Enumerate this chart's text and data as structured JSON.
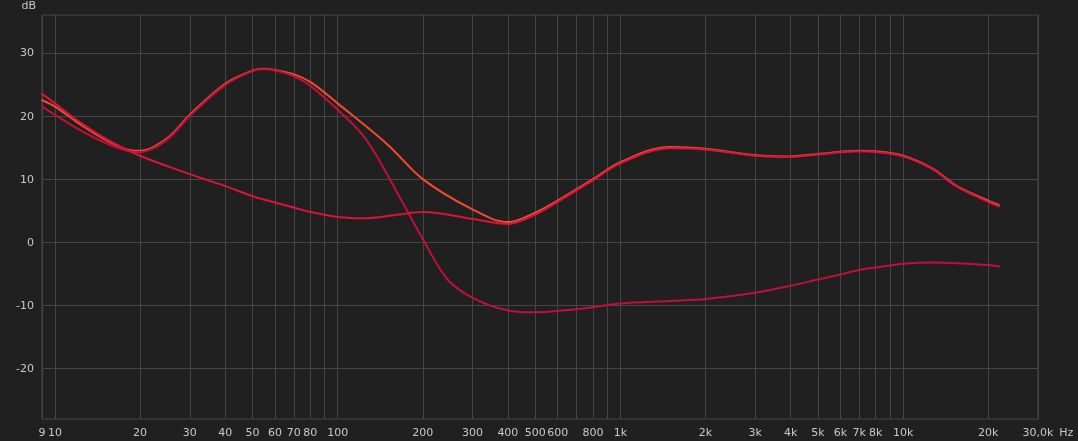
{
  "chart_data": {
    "type": "line",
    "xlabel": "Hz",
    "ylabel": "dB",
    "log": "x",
    "grid": true,
    "marker": "none",
    "line_style": "solid",
    "xlim": [
      9,
      30000
    ],
    "ylim": [
      -28,
      36
    ],
    "xticks": [
      9,
      10,
      20,
      30,
      40,
      50,
      60,
      70,
      80,
      {
        "value": 90,
        "label": null
      },
      100,
      200,
      300,
      400,
      500,
      600,
      {
        "value": 700,
        "label": null
      },
      800,
      {
        "value": 900,
        "label": null
      },
      {
        "value": 1000,
        "label": "1k"
      },
      {
        "value": 2000,
        "label": "2k"
      },
      {
        "value": 3000,
        "label": "3k"
      },
      {
        "value": 4000,
        "label": "4k"
      },
      {
        "value": 5000,
        "label": "5k"
      },
      {
        "value": 6000,
        "label": "6k"
      },
      {
        "value": 7000,
        "label": "7k"
      },
      {
        "value": 8000,
        "label": "8k"
      },
      {
        "value": 9000,
        "label": null
      },
      {
        "value": 10000,
        "label": "10k"
      },
      {
        "value": 20000,
        "label": "20k"
      },
      {
        "value": 30000,
        "label": "30,0k"
      }
    ],
    "yticks": [
      -20,
      -10,
      0,
      10,
      20,
      30
    ],
    "series": [
      {
        "color": "#f04a30",
        "x": [
          9,
          10,
          12,
          15,
          18,
          20,
          25,
          30,
          40,
          50,
          55,
          60,
          70,
          80,
          100,
          150,
          200,
          300,
          400,
          500,
          600,
          800,
          1000,
          1500,
          2000,
          3000,
          4000,
          5000,
          7000,
          8000,
          10000,
          12800,
          15500,
          20000,
          21800
        ],
        "values": [
          22.5,
          21.5,
          19,
          16.3,
          14.7,
          14.5,
          16.5,
          20.2,
          25.1,
          27.2,
          27.5,
          27.3,
          26.6,
          25.4,
          22,
          15.5,
          10,
          5.2,
          3.2,
          4.7,
          6.6,
          10,
          12.7,
          15.1,
          14.8,
          13.8,
          13.6,
          14,
          14.5,
          14.4,
          13.7,
          11.6,
          8.9,
          6.6,
          5.9
        ]
      },
      {
        "color": "#c01038",
        "x": [
          9,
          10,
          12,
          15,
          18,
          20,
          25,
          30,
          40,
          50,
          55,
          60,
          70,
          80,
          100,
          126,
          165,
          200,
          245,
          300,
          400,
          500,
          600,
          800,
          1000,
          1500,
          2000,
          3000,
          4000,
          5000,
          6000,
          7000,
          8000,
          10000,
          12800,
          20000,
          21800
        ],
        "values": [
          21.5,
          20.2,
          18,
          15.8,
          14.5,
          14.3,
          16.3,
          20,
          24.9,
          27.1,
          27.4,
          27.2,
          26.3,
          24.8,
          21,
          16.3,
          7.3,
          0.5,
          -5.9,
          -8.8,
          -10.8,
          -11.1,
          -10.9,
          -10.3,
          -9.7,
          -9.3,
          -9,
          -8,
          -6.9,
          -5.9,
          -5.1,
          -4.4,
          -4,
          -3.4,
          -3.2,
          -3.6,
          -3.8
        ]
      },
      {
        "color": "#d8143c",
        "x": [
          9,
          10,
          12,
          15,
          20,
          30,
          40,
          50,
          60,
          70,
          80,
          100,
          126,
          165,
          200,
          300,
          400,
          500,
          600,
          800,
          1000,
          1500,
          2000,
          3000,
          4000,
          5000,
          7000,
          8000,
          10000,
          12800,
          15500,
          20000,
          21800
        ],
        "values": [
          23.5,
          22,
          19.3,
          16.5,
          13.7,
          10.8,
          8.9,
          7.3,
          6.3,
          5.5,
          4.8,
          4,
          3.8,
          4.4,
          4.8,
          3.7,
          2.9,
          4.4,
          6.4,
          9.8,
          12.5,
          14.9,
          14.7,
          13.7,
          13.5,
          13.9,
          14.4,
          14.3,
          13.6,
          11.5,
          8.8,
          6.4,
          5.7
        ]
      }
    ]
  }
}
